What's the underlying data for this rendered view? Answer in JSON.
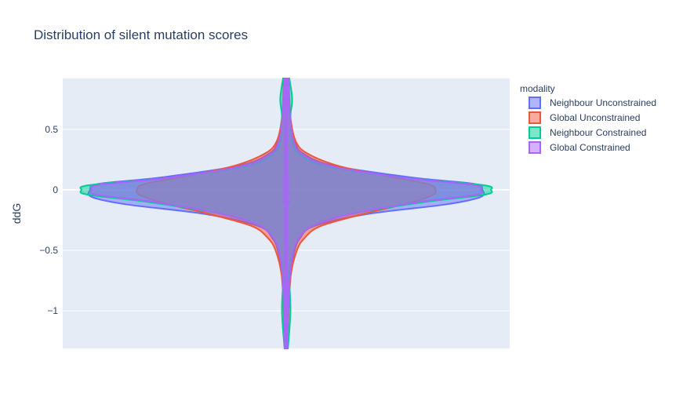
{
  "chart_data": {
    "type": "violin",
    "title": "Distribution of silent mutation scores",
    "xlabel": "",
    "ylabel": "ddG",
    "ylim": [
      -1.31,
      0.92
    ],
    "yticks": [
      0.5,
      0,
      -0.5,
      -1
    ],
    "ytick_labels": [
      "0.5",
      "0",
      "−0.5",
      "−1"
    ],
    "grid": true,
    "legend_title": "modality",
    "legend_position": "right",
    "series": [
      {
        "name": "Neighbour Unconstrained",
        "color": "#636efa",
        "fill_alpha": 0.5,
        "profile": [
          [
            -1.31,
            0.006
          ],
          [
            -1.0,
            0.01
          ],
          [
            -0.7,
            0.02
          ],
          [
            -0.5,
            0.04
          ],
          [
            -0.4,
            0.065
          ],
          [
            -0.3,
            0.13
          ],
          [
            -0.2,
            0.38
          ],
          [
            -0.12,
            0.75
          ],
          [
            -0.06,
            0.91
          ],
          [
            0.0,
            0.92
          ],
          [
            0.05,
            0.88
          ],
          [
            0.1,
            0.6
          ],
          [
            0.2,
            0.22
          ],
          [
            0.3,
            0.08
          ],
          [
            0.4,
            0.04
          ],
          [
            0.6,
            0.018
          ],
          [
            0.92,
            0.01
          ]
        ]
      },
      {
        "name": "Global Unconstrained",
        "color": "#ef553b",
        "fill_alpha": 0.5,
        "profile": [
          [
            -1.31,
            0.006
          ],
          [
            -1.0,
            0.012
          ],
          [
            -0.7,
            0.022
          ],
          [
            -0.5,
            0.05
          ],
          [
            -0.4,
            0.085
          ],
          [
            -0.3,
            0.16
          ],
          [
            -0.2,
            0.36
          ],
          [
            -0.12,
            0.55
          ],
          [
            -0.05,
            0.68
          ],
          [
            0.0,
            0.7
          ],
          [
            0.05,
            0.66
          ],
          [
            0.12,
            0.45
          ],
          [
            0.2,
            0.24
          ],
          [
            0.3,
            0.1
          ],
          [
            0.4,
            0.045
          ],
          [
            0.6,
            0.02
          ],
          [
            0.92,
            0.012
          ]
        ]
      },
      {
        "name": "Neighbour Constrained",
        "color": "#00cc96",
        "fill_alpha": 0.5,
        "profile": [
          [
            -1.31,
            0.008
          ],
          [
            -1.0,
            0.02
          ],
          [
            -0.7,
            0.015
          ],
          [
            -0.5,
            0.035
          ],
          [
            -0.4,
            0.06
          ],
          [
            -0.3,
            0.12
          ],
          [
            -0.2,
            0.3
          ],
          [
            -0.1,
            0.65
          ],
          [
            -0.04,
            0.93
          ],
          [
            0.0,
            0.96
          ],
          [
            0.04,
            0.92
          ],
          [
            0.1,
            0.55
          ],
          [
            0.2,
            0.18
          ],
          [
            0.3,
            0.06
          ],
          [
            0.4,
            0.03
          ],
          [
            0.6,
            0.02
          ],
          [
            0.75,
            0.028
          ],
          [
            0.92,
            0.015
          ]
        ]
      },
      {
        "name": "Global Constrained",
        "color": "#ab63fa",
        "fill_alpha": 0.5,
        "profile": [
          [
            -1.31,
            0.006
          ],
          [
            -1.0,
            0.01
          ],
          [
            -0.7,
            0.018
          ],
          [
            -0.5,
            0.035
          ],
          [
            -0.4,
            0.06
          ],
          [
            -0.3,
            0.12
          ],
          [
            -0.2,
            0.3
          ],
          [
            -0.1,
            0.62
          ],
          [
            -0.04,
            0.89
          ],
          [
            0.0,
            0.91
          ],
          [
            0.04,
            0.88
          ],
          [
            0.1,
            0.55
          ],
          [
            0.2,
            0.2
          ],
          [
            0.3,
            0.07
          ],
          [
            0.4,
            0.035
          ],
          [
            0.6,
            0.018
          ],
          [
            0.92,
            0.01
          ]
        ]
      }
    ]
  }
}
